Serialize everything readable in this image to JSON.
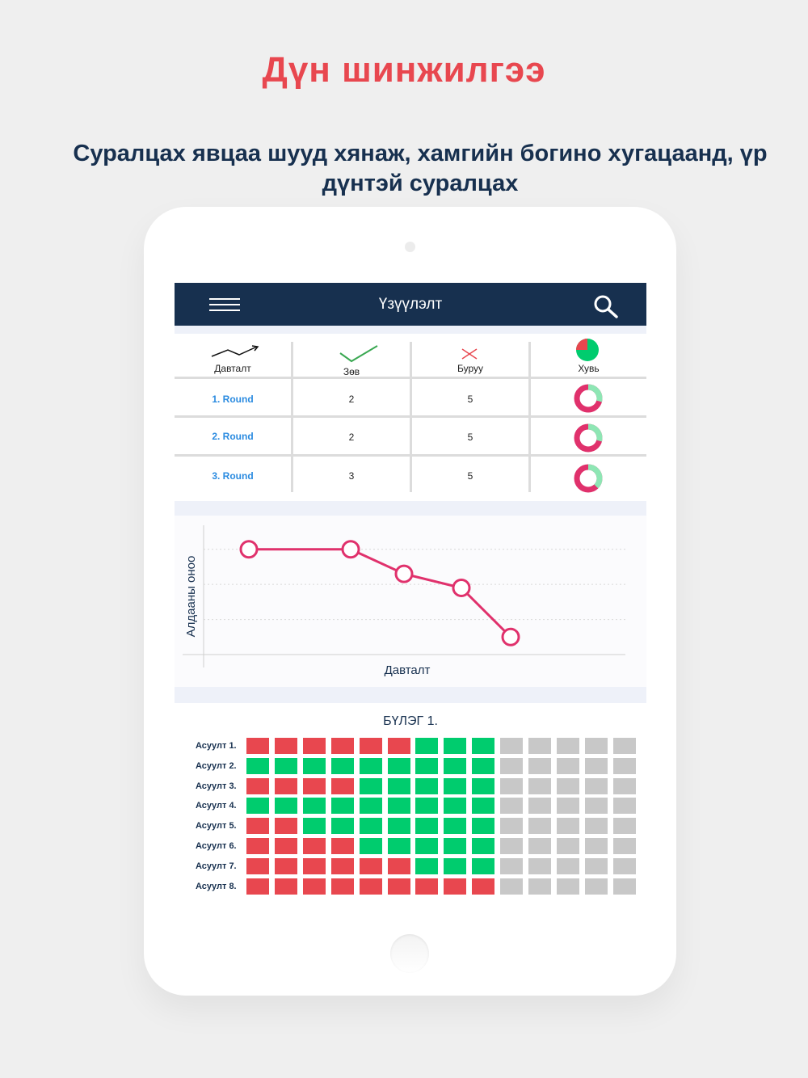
{
  "headline": "Дүн шинжилгээ",
  "subline": "Суралцах явцаа шууд хянаж, хамгийн богино хугацаанд, үр дүнтэй суралцах",
  "appbar": {
    "title": "Үзүүлэлт"
  },
  "table": {
    "headers": [
      "Давталт",
      "Зөв",
      "Буруу",
      "Хувь"
    ],
    "rows": [
      {
        "label": "1. Round",
        "correct": "2",
        "wrong": "5",
        "ratio": 0.29
      },
      {
        "label": "2. Round",
        "correct": "2",
        "wrong": "5",
        "ratio": 0.29
      },
      {
        "label": "3. Round",
        "correct": "3",
        "wrong": "5",
        "ratio": 0.375
      }
    ]
  },
  "colors": {
    "accent": "#e8474f",
    "navy": "#17304f",
    "pink": "#e0316c",
    "green": "#00cc6e",
    "red": "#e8474f",
    "gray": "#c8c8c8",
    "mint": "#8ee6b4"
  },
  "chart_data": {
    "type": "line",
    "xlabel": "Давталт",
    "ylabel": "Алдааны оноо",
    "x": [
      1,
      2,
      3,
      4,
      5
    ],
    "values": [
      4,
      4,
      3.3,
      2.9,
      1.5
    ],
    "ylim": [
      1,
      4.5
    ],
    "grid": true
  },
  "grid": {
    "title": "БҮЛЭГ 1.",
    "rows": [
      {
        "label": "Асуулт  1.",
        "cells": "RRRRRRGGGXXXXX"
      },
      {
        "label": "Асуулт  2.",
        "cells": "GGGGGGGGGXXXXX"
      },
      {
        "label": "Асуулт  3.",
        "cells": "RRRRGGGGGXXXXX"
      },
      {
        "label": "Асуулт  4.",
        "cells": "GGGGGGGGGXXXXX"
      },
      {
        "label": "Асуулт  5.",
        "cells": "RRGGGGGGGXXXXX"
      },
      {
        "label": "Асуулт  6.",
        "cells": "RRRRGGGGGXXXXX"
      },
      {
        "label": "Асуулт  7.",
        "cells": "RRRRRRGGGXXXXX"
      },
      {
        "label": "Асуулт  8.",
        "cells": "RRRRRRRRRXXXXX"
      }
    ]
  }
}
